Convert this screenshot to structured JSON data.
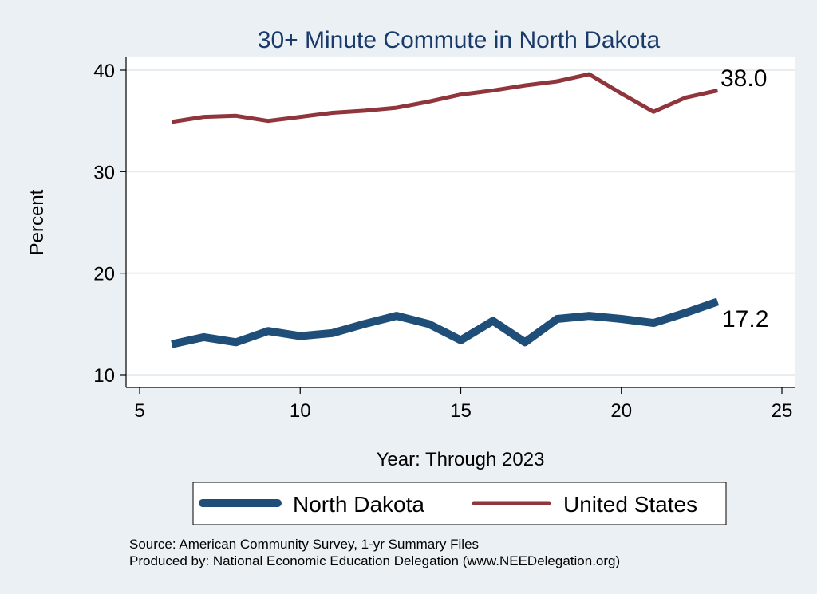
{
  "chart_data": {
    "type": "line",
    "title": "30+ Minute Commute in North Dakota",
    "xlabel": "Year: Through 2023",
    "ylabel": "Percent",
    "xlim": [
      5,
      25
    ],
    "ylim": [
      10,
      40
    ],
    "x_ticks": [
      "5",
      "10",
      "15",
      "20",
      "25"
    ],
    "y_ticks": [
      "10",
      "20",
      "30",
      "40"
    ],
    "grid": true,
    "legend_position": "bottom",
    "series": [
      {
        "name": "North Dakota",
        "color": "#1f4e79",
        "end_label": "17.2",
        "x": [
          6,
          7,
          8,
          9,
          10,
          11,
          12,
          13,
          14,
          15,
          16,
          17,
          18,
          19,
          20,
          21,
          22,
          23
        ],
        "y": [
          13.0,
          13.7,
          13.2,
          14.3,
          13.8,
          14.1,
          15.0,
          15.8,
          15.0,
          13.4,
          15.3,
          13.2,
          15.5,
          15.8,
          15.5,
          15.1,
          16.1,
          17.2
        ]
      },
      {
        "name": "United States",
        "color": "#90353b",
        "end_label": "38.0",
        "x": [
          6,
          7,
          8,
          9,
          10,
          11,
          12,
          13,
          14,
          15,
          16,
          17,
          18,
          19,
          20,
          21,
          22,
          23
        ],
        "y": [
          34.9,
          35.4,
          35.5,
          35.0,
          35.4,
          35.8,
          36.0,
          36.3,
          36.9,
          37.6,
          38.0,
          38.5,
          38.9,
          39.6,
          37.7,
          35.9,
          37.3,
          38.0
        ]
      }
    ],
    "notes": [
      "Source: American Community Survey, 1-yr Summary Files",
      "Produced by: National Economic Education Delegation (www.NEEDelegation.org)"
    ]
  }
}
